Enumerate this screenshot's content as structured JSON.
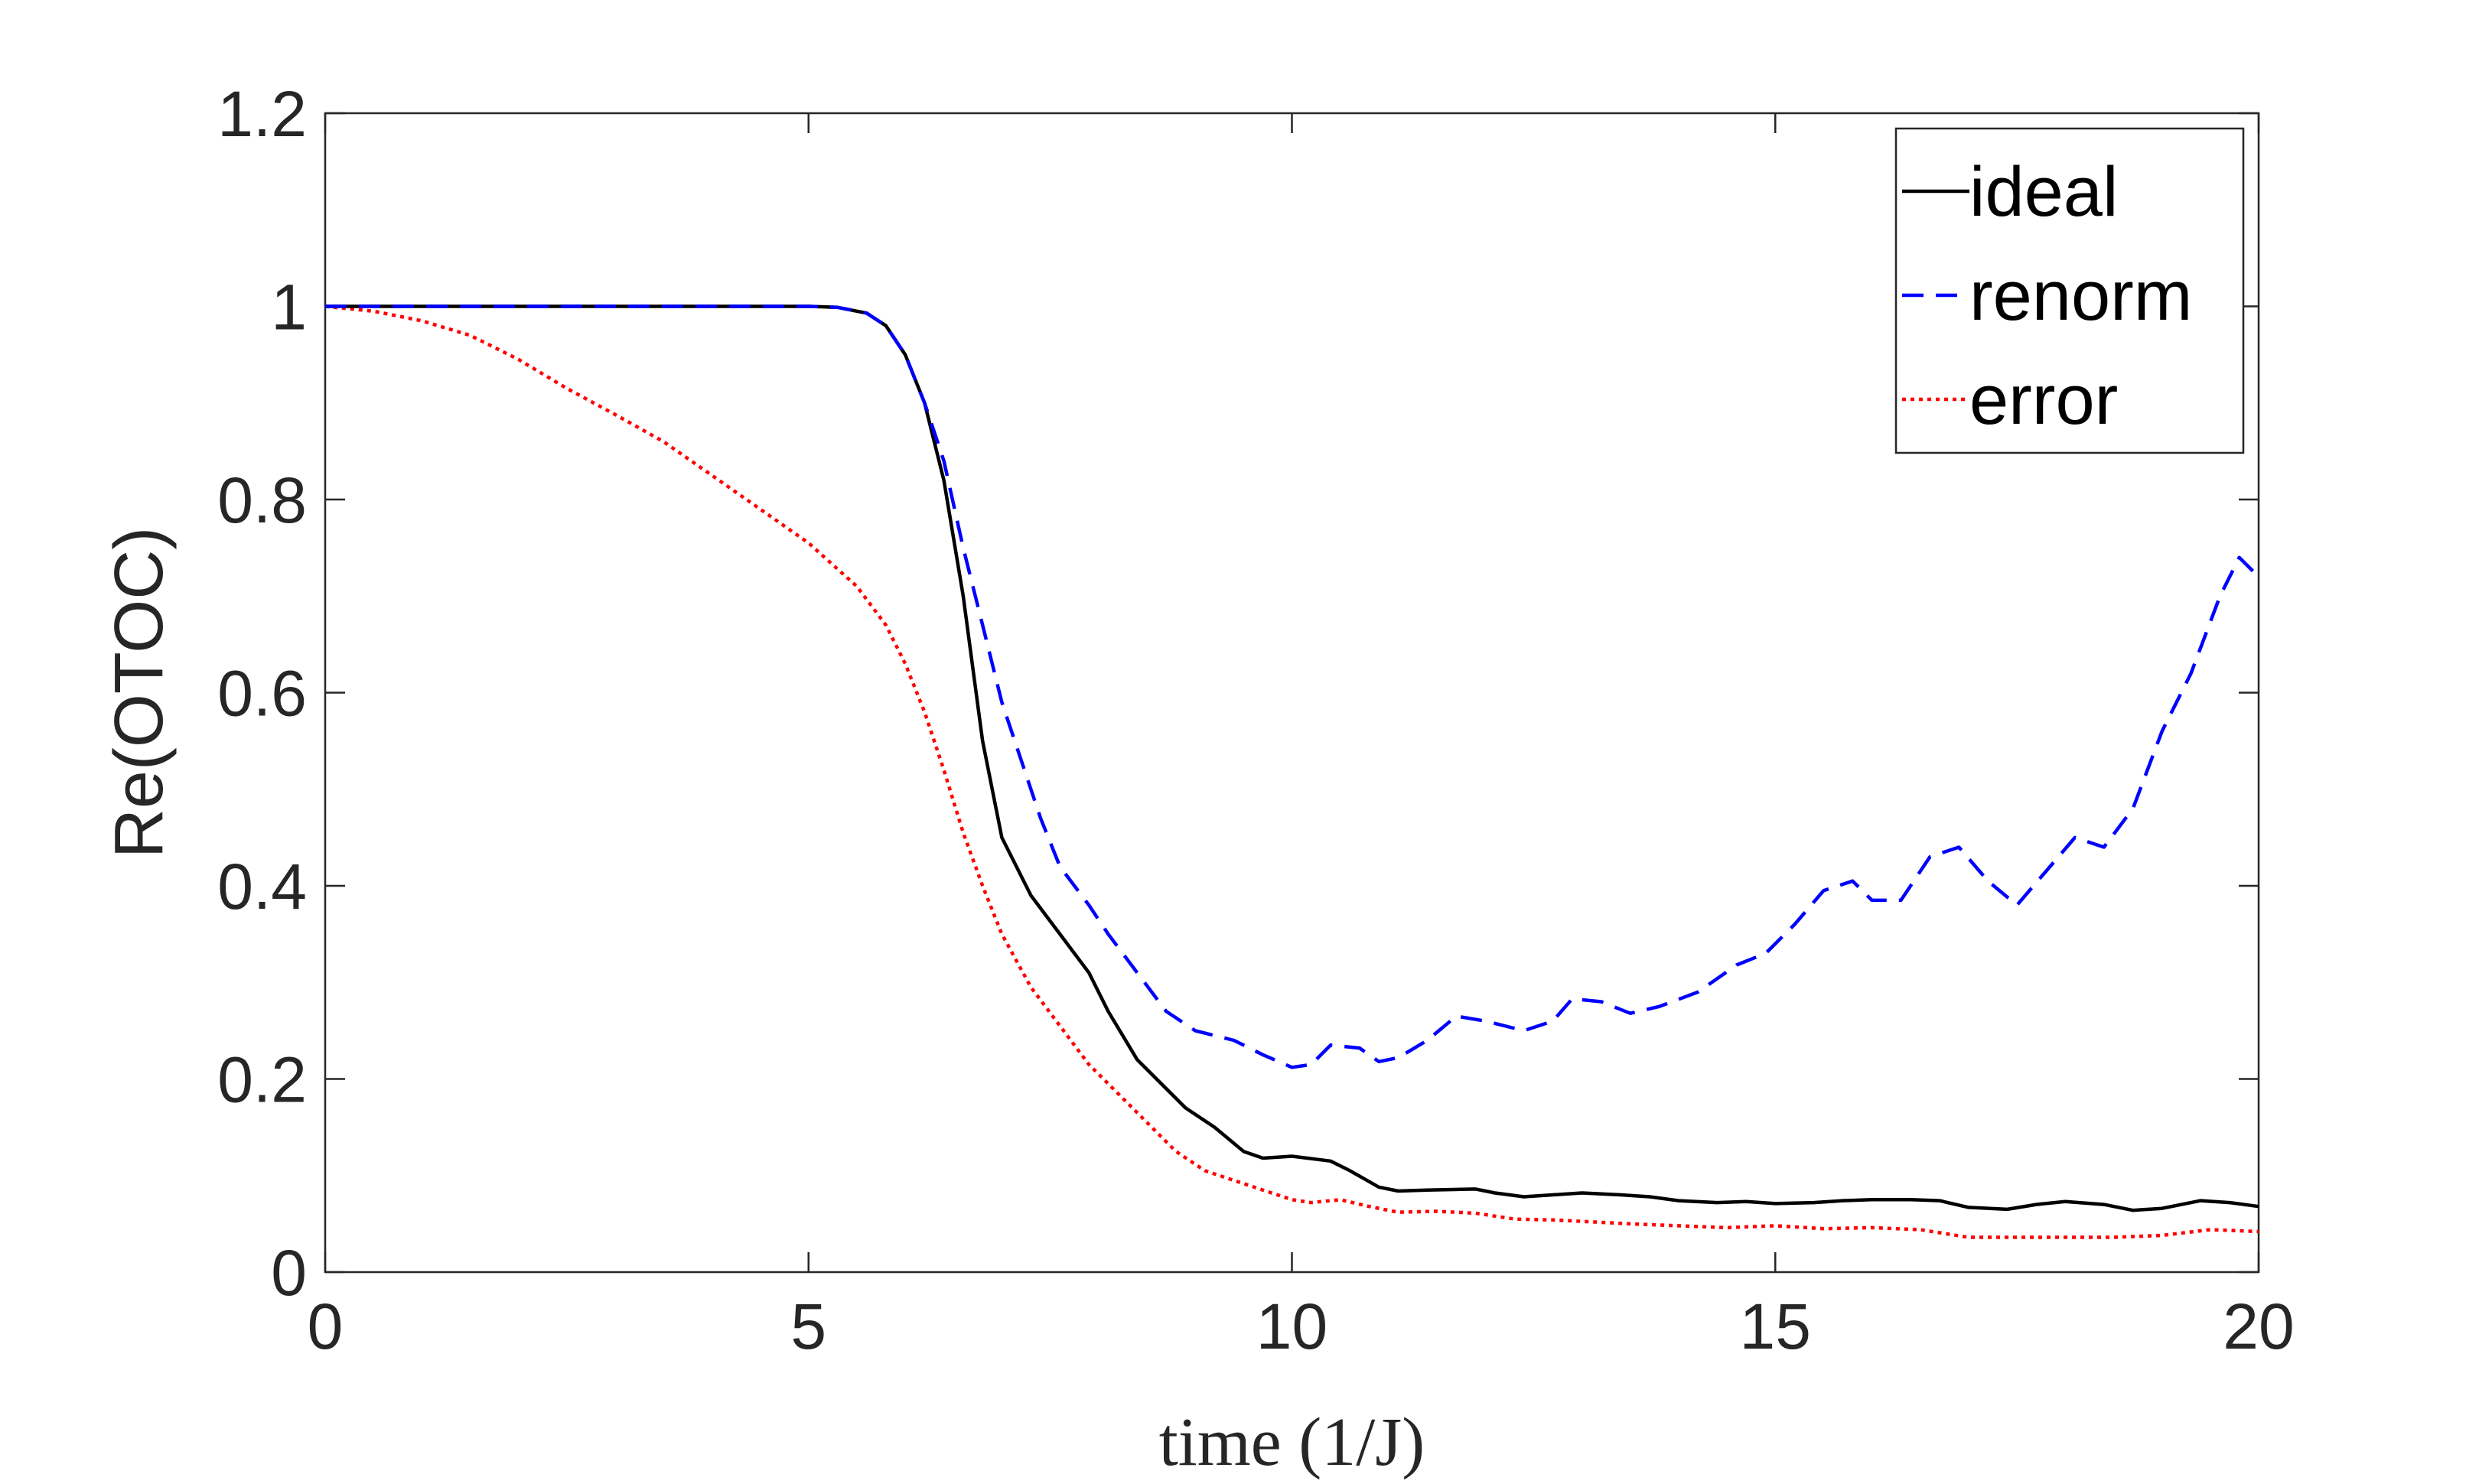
{
  "chart_data": {
    "type": "line",
    "xlabel": "time (1/J)",
    "ylabel": "Re(OTOC)",
    "xlim": [
      0,
      20
    ],
    "ylim": [
      0,
      1.2
    ],
    "xticks": [
      0,
      5,
      10,
      15,
      20
    ],
    "yticks": [
      0,
      0.2,
      0.4,
      0.6,
      0.8,
      1,
      1.2
    ],
    "xtick_labels": [
      "0",
      "5",
      "10",
      "15",
      "20"
    ],
    "ytick_labels": [
      "0",
      "0.2",
      "0.4",
      "0.6",
      "0.8",
      "1",
      "1.2"
    ],
    "grid": false,
    "legend_position": "top-right",
    "series": [
      {
        "name": "ideal",
        "color": "#000000",
        "style": "solid",
        "x": [
          0,
          1,
          2,
          3,
          4,
          5,
          5.3,
          5.6,
          5.8,
          6.0,
          6.2,
          6.4,
          6.6,
          6.8,
          7.0,
          7.3,
          7.6,
          7.9,
          8.1,
          8.4,
          8.7,
          8.9,
          9.2,
          9.5,
          9.7,
          10.0,
          10.4,
          10.6,
          10.9,
          11.1,
          11.4,
          11.9,
          12.1,
          12.4,
          12.7,
          13.0,
          13.4,
          13.7,
          14.0,
          14.4,
          14.7,
          15.0,
          15.4,
          15.7,
          16.0,
          16.4,
          16.7,
          17.0,
          17.4,
          17.7,
          18.0,
          18.4,
          18.7,
          19.0,
          19.4,
          19.7,
          20.0
        ],
        "values": [
          1,
          1,
          1,
          1,
          1,
          1,
          0.999,
          0.993,
          0.98,
          0.95,
          0.9,
          0.82,
          0.7,
          0.55,
          0.45,
          0.39,
          0.35,
          0.31,
          0.27,
          0.22,
          0.19,
          0.17,
          0.15,
          0.125,
          0.118,
          0.12,
          0.115,
          0.105,
          0.088,
          0.084,
          0.085,
          0.086,
          0.082,
          0.078,
          0.08,
          0.082,
          0.08,
          0.078,
          0.074,
          0.072,
          0.073,
          0.071,
          0.072,
          0.074,
          0.075,
          0.075,
          0.074,
          0.067,
          0.065,
          0.07,
          0.073,
          0.07,
          0.064,
          0.066,
          0.074,
          0.072,
          0.068
        ]
      },
      {
        "name": "renorm",
        "color": "#0000ff",
        "style": "dashed",
        "x": [
          0,
          1,
          2,
          3,
          4,
          5,
          5.3,
          5.6,
          5.8,
          6.0,
          6.2,
          6.4,
          6.6,
          6.8,
          7.0,
          7.2,
          7.4,
          7.6,
          7.9,
          8.1,
          8.4,
          8.7,
          9.0,
          9.4,
          9.7,
          10.0,
          10.2,
          10.4,
          10.7,
          10.9,
          11.1,
          11.4,
          11.7,
          12.0,
          12.4,
          12.7,
          12.9,
          13.2,
          13.5,
          13.8,
          14.2,
          14.6,
          14.9,
          15.2,
          15.5,
          15.8,
          16.0,
          16.3,
          16.6,
          16.9,
          17.2,
          17.5,
          17.8,
          18.1,
          18.4,
          18.7,
          19.0,
          19.3,
          19.6,
          19.8,
          20.0
        ],
        "values": [
          1,
          1,
          1,
          1,
          1,
          1,
          0.999,
          0.993,
          0.98,
          0.95,
          0.9,
          0.84,
          0.75,
          0.67,
          0.59,
          0.53,
          0.47,
          0.42,
          0.38,
          0.35,
          0.31,
          0.27,
          0.25,
          0.24,
          0.225,
          0.212,
          0.215,
          0.235,
          0.232,
          0.218,
          0.222,
          0.24,
          0.265,
          0.26,
          0.25,
          0.26,
          0.283,
          0.28,
          0.268,
          0.275,
          0.29,
          0.318,
          0.33,
          0.36,
          0.395,
          0.405,
          0.385,
          0.385,
          0.43,
          0.44,
          0.405,
          0.38,
          0.415,
          0.45,
          0.44,
          0.48,
          0.56,
          0.62,
          0.7,
          0.74,
          0.72
        ]
      },
      {
        "name": "error",
        "color": "#ff0000",
        "style": "dotted",
        "x": [
          0,
          0.5,
          1,
          1.5,
          2,
          2.5,
          3,
          3.5,
          4,
          4.5,
          5,
          5.5,
          5.8,
          6.0,
          6.2,
          6.4,
          6.6,
          6.8,
          7.0,
          7.3,
          7.6,
          7.9,
          8.2,
          8.5,
          8.8,
          9.1,
          9.4,
          9.7,
          10.0,
          10.2,
          10.5,
          10.8,
          11.1,
          11.5,
          11.9,
          12.3,
          12.7,
          13.1,
          13.5,
          14.0,
          14.5,
          15.0,
          15.5,
          16.0,
          16.5,
          17.0,
          17.5,
          18.0,
          18.5,
          19.0,
          19.5,
          20.0
        ],
        "values": [
          1,
          0.995,
          0.985,
          0.97,
          0.945,
          0.915,
          0.888,
          0.86,
          0.825,
          0.79,
          0.755,
          0.71,
          0.67,
          0.63,
          0.58,
          0.52,
          0.455,
          0.4,
          0.35,
          0.295,
          0.255,
          0.215,
          0.185,
          0.155,
          0.125,
          0.105,
          0.095,
          0.085,
          0.075,
          0.072,
          0.075,
          0.068,
          0.062,
          0.063,
          0.061,
          0.055,
          0.054,
          0.052,
          0.05,
          0.048,
          0.046,
          0.048,
          0.045,
          0.046,
          0.044,
          0.036,
          0.036,
          0.036,
          0.036,
          0.038,
          0.044,
          0.042
        ]
      }
    ]
  }
}
